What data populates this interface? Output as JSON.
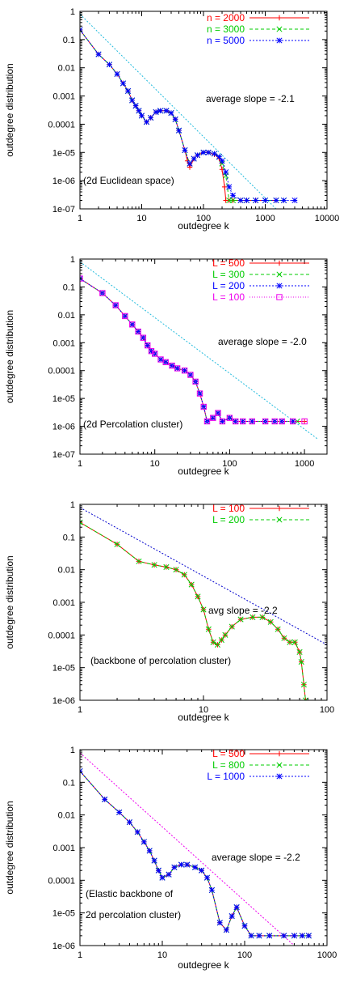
{
  "chart_data": [
    {
      "type": "line",
      "xscale": "log",
      "yscale": "log",
      "xlim": [
        1,
        10000
      ],
      "ylim": [
        1e-07,
        1
      ],
      "xticks": [
        "1",
        "10",
        "100",
        "1000",
        "10000"
      ],
      "yticks": [
        "1e-07",
        "1e-06",
        "1e-05",
        "0.0001",
        "0.001",
        "0.01",
        "0.1",
        "1"
      ],
      "xlabel": "outdegree k",
      "ylabel": "outdegree distribution",
      "annotations": {
        "slope": "average slope = -2.1",
        "label": "(2d Euclidean space)"
      },
      "legend_position": "top-right",
      "grid": false,
      "reference_line": {
        "slope": -2.1,
        "color": "#22bbdd",
        "x": [
          1,
          1500
        ],
        "y": [
          0.8,
          1e-07
        ]
      },
      "series": [
        {
          "name": "n = 2000",
          "color": "#ff0000",
          "marker": "plus",
          "x": [
            1,
            2,
            3,
            4,
            5,
            6,
            7,
            8,
            9,
            10,
            12,
            14,
            17,
            20,
            25,
            30,
            35,
            40,
            50,
            55,
            60,
            70,
            80,
            100,
            120,
            150,
            180,
            200,
            220,
            230,
            260,
            300,
            400,
            500,
            700,
            1000,
            1500
          ],
          "y": [
            0.22,
            0.03,
            0.013,
            0.006,
            0.0028,
            0.0015,
            0.0007,
            0.00045,
            0.0003,
            0.0002,
            0.00012,
            0.00017,
            0.00027,
            0.0003,
            0.0003,
            0.00025,
            0.00015,
            6e-05,
            1.2e-05,
            5e-06,
            3e-06,
            6e-06,
            8e-06,
            1e-05,
            1e-05,
            8.5e-06,
            6e-06,
            2.5e-06,
            6e-07,
            2e-07,
            2e-07,
            2e-07,
            2e-07,
            2e-07,
            2e-07,
            2e-07,
            2e-07
          ]
        },
        {
          "name": "n = 3000",
          "color": "#00cc00",
          "marker": "cross",
          "x": [
            1,
            2,
            3,
            4,
            5,
            6,
            7,
            8,
            9,
            10,
            12,
            14,
            17,
            20,
            25,
            30,
            35,
            40,
            50,
            60,
            70,
            80,
            100,
            120,
            150,
            180,
            200,
            230,
            260,
            300,
            400,
            500,
            700,
            1000,
            1500,
            2000
          ],
          "y": [
            0.22,
            0.03,
            0.013,
            0.006,
            0.0028,
            0.0015,
            0.0007,
            0.00045,
            0.0003,
            0.0002,
            0.00012,
            0.00017,
            0.00027,
            0.0003,
            0.0003,
            0.00025,
            0.00015,
            6e-05,
            1.2e-05,
            4e-06,
            6e-06,
            8e-06,
            1e-05,
            1e-05,
            9e-06,
            7e-06,
            4e-06,
            1.5e-06,
            2e-07,
            2e-07,
            2e-07,
            2e-07,
            2e-07,
            2e-07,
            2e-07,
            2e-07
          ]
        },
        {
          "name": "n = 5000",
          "color": "#0000ff",
          "marker": "star",
          "x": [
            1,
            2,
            3,
            4,
            5,
            6,
            7,
            8,
            9,
            10,
            12,
            14,
            17,
            20,
            25,
            30,
            35,
            40,
            50,
            60,
            70,
            80,
            100,
            120,
            150,
            180,
            200,
            230,
            260,
            300,
            400,
            500,
            700,
            1000,
            1500,
            2000,
            3000
          ],
          "y": [
            0.22,
            0.03,
            0.013,
            0.006,
            0.0028,
            0.0015,
            0.0007,
            0.00045,
            0.0003,
            0.0002,
            0.00012,
            0.00017,
            0.00027,
            0.0003,
            0.0003,
            0.00025,
            0.00015,
            6e-05,
            1.2e-05,
            4e-06,
            6e-06,
            8e-06,
            1e-05,
            1e-05,
            9e-06,
            7e-06,
            5e-06,
            2e-06,
            6e-07,
            3e-07,
            2e-07,
            2e-07,
            2e-07,
            2e-07,
            2e-07,
            2e-07,
            2e-07
          ]
        }
      ]
    },
    {
      "type": "line",
      "xscale": "log",
      "yscale": "log",
      "xlim": [
        1,
        2000
      ],
      "ylim": [
        1e-07,
        1
      ],
      "xticks": [
        "1",
        "10",
        "100",
        "1000"
      ],
      "yticks": [
        "1e-07",
        "1e-06",
        "1e-05",
        "0.0001",
        "0.001",
        "0.01",
        "0.1",
        "1"
      ],
      "xlabel": "outdegree k",
      "ylabel": "outdegree distribution",
      "annotations": {
        "slope": "average slope = -2.0",
        "label": "(2d Percolation cluster)"
      },
      "legend_position": "top-right",
      "grid": false,
      "reference_line": {
        "slope": -2.0,
        "color": "#22bbdd",
        "x": [
          1,
          1500
        ],
        "y": [
          0.8,
          3.5e-07
        ]
      },
      "series": [
        {
          "name": "L = 500",
          "color": "#ff0000",
          "marker": "plus",
          "x": [
            1,
            2,
            3,
            4,
            5,
            6,
            7,
            8,
            9,
            10,
            12,
            14,
            17,
            20,
            25,
            30,
            35,
            40,
            45,
            50,
            60,
            70,
            80,
            100,
            120,
            150,
            200,
            300,
            400,
            500,
            700,
            1000
          ],
          "y": [
            0.2,
            0.06,
            0.022,
            0.009,
            0.0045,
            0.0025,
            0.0015,
            0.0008,
            0.0005,
            0.0004,
            0.00025,
            0.0002,
            0.00015,
            0.00012,
            0.0001,
            7e-05,
            4e-05,
            1.5e-05,
            5e-06,
            1.5e-06,
            2e-06,
            3e-06,
            1.5e-06,
            2e-06,
            1.5e-06,
            1.5e-06,
            1.5e-06,
            1.5e-06,
            1.5e-06,
            1.5e-06,
            1.5e-06,
            1.5e-06
          ]
        },
        {
          "name": "L = 300",
          "color": "#00cc00",
          "marker": "cross",
          "x": [
            1,
            2,
            3,
            4,
            5,
            6,
            7,
            8,
            9,
            10,
            12,
            14,
            17,
            20,
            25,
            30,
            35,
            40,
            45,
            50,
            60,
            70,
            80,
            100,
            120,
            150,
            200,
            300,
            400,
            500,
            700,
            800
          ],
          "y": [
            0.2,
            0.06,
            0.022,
            0.009,
            0.0045,
            0.0025,
            0.0015,
            0.0008,
            0.0005,
            0.0004,
            0.00025,
            0.0002,
            0.00015,
            0.00012,
            0.0001,
            7e-05,
            4e-05,
            1.5e-05,
            5e-06,
            1.5e-06,
            2e-06,
            3e-06,
            1.5e-06,
            2e-06,
            1.5e-06,
            1.5e-06,
            1.5e-06,
            1.5e-06,
            1.5e-06,
            1.5e-06,
            1.5e-06,
            1.5e-06
          ]
        },
        {
          "name": "L = 200",
          "color": "#0000ff",
          "marker": "star",
          "x": [
            1,
            2,
            3,
            4,
            5,
            6,
            7,
            8,
            9,
            10,
            12,
            14,
            17,
            20,
            25,
            30,
            35,
            40,
            45,
            50,
            60,
            70,
            80,
            100,
            120,
            150,
            200,
            300,
            400,
            500,
            700
          ],
          "y": [
            0.2,
            0.06,
            0.022,
            0.009,
            0.0045,
            0.0025,
            0.0015,
            0.0008,
            0.0005,
            0.0004,
            0.00025,
            0.0002,
            0.00015,
            0.00012,
            0.0001,
            7e-05,
            4e-05,
            1.5e-05,
            5e-06,
            1.5e-06,
            2e-06,
            3e-06,
            1.5e-06,
            2e-06,
            1.5e-06,
            1.5e-06,
            1.5e-06,
            1.5e-06,
            1.5e-06,
            1.5e-06,
            1.5e-06
          ]
        },
        {
          "name": "L = 100",
          "color": "#ee00ee",
          "marker": "square",
          "x": [
            1,
            2,
            3,
            4,
            5,
            6,
            7,
            8,
            9,
            10,
            12,
            14,
            17,
            20,
            25,
            30,
            35,
            40,
            45,
            50,
            60,
            70,
            80,
            100,
            120,
            150,
            200,
            300,
            400,
            500,
            700,
            1000
          ],
          "y": [
            0.2,
            0.06,
            0.022,
            0.009,
            0.0045,
            0.0025,
            0.0015,
            0.0008,
            0.0005,
            0.0004,
            0.00025,
            0.0002,
            0.00015,
            0.00012,
            0.0001,
            7e-05,
            4e-05,
            1.5e-05,
            5e-06,
            1.5e-06,
            2e-06,
            3e-06,
            1.5e-06,
            2e-06,
            1.5e-06,
            1.5e-06,
            1.5e-06,
            1.5e-06,
            1.5e-06,
            1.5e-06,
            1.5e-06,
            1.5e-06
          ]
        }
      ]
    },
    {
      "type": "line",
      "xscale": "log",
      "yscale": "log",
      "xlim": [
        1,
        100
      ],
      "ylim": [
        1e-06,
        1
      ],
      "xticks": [
        "1",
        "10",
        "100"
      ],
      "yticks": [
        "1e-06",
        "1e-05",
        "0.0001",
        "0.001",
        "0.01",
        "0.1",
        "1"
      ],
      "xlabel": "outdegree k",
      "ylabel": "outdegree distribution",
      "annotations": {
        "slope": "avg slope = -2.2",
        "label": "(backbone of percolation cluster)"
      },
      "legend_position": "top-right",
      "grid": false,
      "reference_line": {
        "slope": -2.2,
        "color": "#0000cc",
        "x": [
          1,
          100
        ],
        "y": [
          0.8,
          5e-05
        ]
      },
      "series": [
        {
          "name": "L = 100",
          "color": "#ff0000",
          "marker": "plus",
          "x": [
            1,
            2,
            3,
            4,
            5,
            6,
            7,
            8,
            9,
            10,
            11,
            12,
            13,
            14,
            15,
            17,
            20,
            25,
            30,
            35,
            40,
            45,
            50,
            55,
            60,
            62,
            65,
            67
          ],
          "y": [
            0.28,
            0.06,
            0.018,
            0.014,
            0.012,
            0.01,
            0.007,
            0.0035,
            0.0015,
            0.0006,
            0.00015,
            6e-05,
            5e-05,
            7e-05,
            0.0001,
            0.00018,
            0.0003,
            0.00035,
            0.00035,
            0.00025,
            0.00015,
            8e-05,
            6e-05,
            6e-05,
            3e-05,
            1.5e-05,
            3e-06,
            1e-06
          ]
        },
        {
          "name": "L = 200",
          "color": "#00cc00",
          "marker": "cross",
          "x": [
            1,
            2,
            3,
            4,
            5,
            6,
            7,
            8,
            9,
            10,
            11,
            12,
            13,
            14,
            15,
            17,
            20,
            25,
            30,
            35,
            40,
            45,
            50,
            55,
            60,
            62,
            65,
            67
          ],
          "y": [
            0.28,
            0.06,
            0.018,
            0.014,
            0.012,
            0.01,
            0.007,
            0.0035,
            0.0015,
            0.0006,
            0.00015,
            6e-05,
            5e-05,
            7e-05,
            0.0001,
            0.00018,
            0.0003,
            0.00035,
            0.00035,
            0.00025,
            0.00015,
            8e-05,
            6e-05,
            6e-05,
            3e-05,
            1.5e-05,
            3e-06,
            1e-06
          ]
        }
      ]
    },
    {
      "type": "line",
      "xscale": "log",
      "yscale": "log",
      "xlim": [
        1,
        1000
      ],
      "ylim": [
        1e-06,
        1
      ],
      "xticks": [
        "1",
        "10",
        "100",
        "1000"
      ],
      "yticks": [
        "1e-06",
        "1e-05",
        "0.0001",
        "0.001",
        "0.01",
        "0.1",
        "1"
      ],
      "xlabel": "outdegree k",
      "ylabel": "outdegree distribution",
      "annotations": {
        "slope": "average slope = -2.2",
        "label_line1": "(Elastic backbone of",
        "label_line2": "2d percolation cluster)"
      },
      "legend_position": "top-right",
      "grid": false,
      "reference_line": {
        "slope": -2.2,
        "color": "#ee00ee",
        "x": [
          1,
          400
        ],
        "y": [
          0.8,
          1e-06
        ]
      },
      "series": [
        {
          "name": "L = 500",
          "color": "#ff0000",
          "marker": "plus",
          "x": [
            1,
            2,
            3,
            4,
            5,
            6,
            7,
            8,
            9,
            10,
            12,
            14,
            17,
            20,
            25,
            30,
            35,
            40,
            50,
            60,
            70,
            80,
            100,
            120,
            150,
            200,
            300,
            400,
            500,
            600
          ],
          "y": [
            0.22,
            0.03,
            0.012,
            0.006,
            0.003,
            0.0015,
            0.0008,
            0.0004,
            0.0002,
            0.00012,
            0.00015,
            0.00025,
            0.0003,
            0.0003,
            0.00025,
            0.0002,
            0.00012,
            5e-05,
            5e-06,
            3e-06,
            8e-06,
            1.5e-05,
            4e-06,
            2e-06,
            2e-06,
            2e-06,
            2e-06,
            2e-06,
            2e-06,
            2e-06
          ]
        },
        {
          "name": "L = 800",
          "color": "#00cc00",
          "marker": "cross",
          "x": [
            1,
            2,
            3,
            4,
            5,
            6,
            7,
            8,
            9,
            10,
            12,
            14,
            17,
            20,
            25,
            30,
            35,
            40,
            50,
            60,
            70,
            80,
            100,
            120,
            150,
            200,
            300,
            400,
            500,
            600
          ],
          "y": [
            0.22,
            0.03,
            0.012,
            0.006,
            0.003,
            0.0015,
            0.0008,
            0.0004,
            0.0002,
            0.00012,
            0.00015,
            0.00025,
            0.0003,
            0.0003,
            0.00025,
            0.0002,
            0.00012,
            5e-05,
            5e-06,
            3e-06,
            8e-06,
            1.5e-05,
            4e-06,
            2e-06,
            2e-06,
            2e-06,
            2e-06,
            2e-06,
            2e-06,
            2e-06
          ]
        },
        {
          "name": "L = 1000",
          "color": "#0000ff",
          "marker": "star",
          "x": [
            1,
            2,
            3,
            4,
            5,
            6,
            7,
            8,
            9,
            10,
            12,
            14,
            17,
            20,
            25,
            30,
            35,
            40,
            50,
            60,
            70,
            80,
            100,
            120,
            150,
            200,
            300,
            400,
            500,
            600
          ],
          "y": [
            0.22,
            0.03,
            0.012,
            0.006,
            0.003,
            0.0015,
            0.0008,
            0.0004,
            0.0002,
            0.00012,
            0.00015,
            0.00025,
            0.0003,
            0.0003,
            0.00025,
            0.0002,
            0.00012,
            5e-05,
            5e-06,
            3e-06,
            8e-06,
            1.5e-05,
            4e-06,
            2e-06,
            2e-06,
            2e-06,
            2e-06,
            2e-06,
            2e-06,
            2e-06
          ]
        }
      ]
    }
  ]
}
